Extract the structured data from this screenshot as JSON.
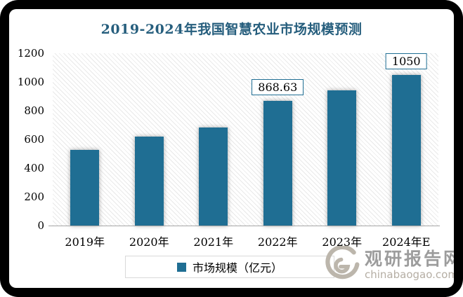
{
  "chart_data": {
    "type": "bar",
    "title": "2019-2024年我国智慧农业市场规模预测",
    "categories": [
      "2019年",
      "2020年",
      "2021年",
      "2022年",
      "2023年",
      "2024年E"
    ],
    "series": [
      {
        "name": "市场规模（亿元）",
        "values": [
          525,
          618,
          682,
          868.63,
          940,
          1050
        ]
      }
    ],
    "data_labels": [
      "",
      "",
      "",
      "868.63",
      "",
      "1050"
    ],
    "xlabel": "",
    "ylabel": "",
    "ylim": [
      0,
      1200
    ],
    "yticks": [
      0,
      200,
      400,
      600,
      800,
      1000,
      1200
    ],
    "grid": false,
    "legend_position": "bottom",
    "bar_color": "#1F6E93",
    "plot_background": "diagonal-hatch"
  },
  "legend": {
    "label": "市场规模（亿元）"
  },
  "watermark": {
    "brand": "观研报告网",
    "domain": "chinabaogao.com"
  },
  "colors": {
    "bar": "#1F6E93",
    "title": "#265E7D",
    "label_box_border": "#1F6E93",
    "axis_line": "#a6a6a6",
    "watermark_text": "#9c9c9c"
  }
}
